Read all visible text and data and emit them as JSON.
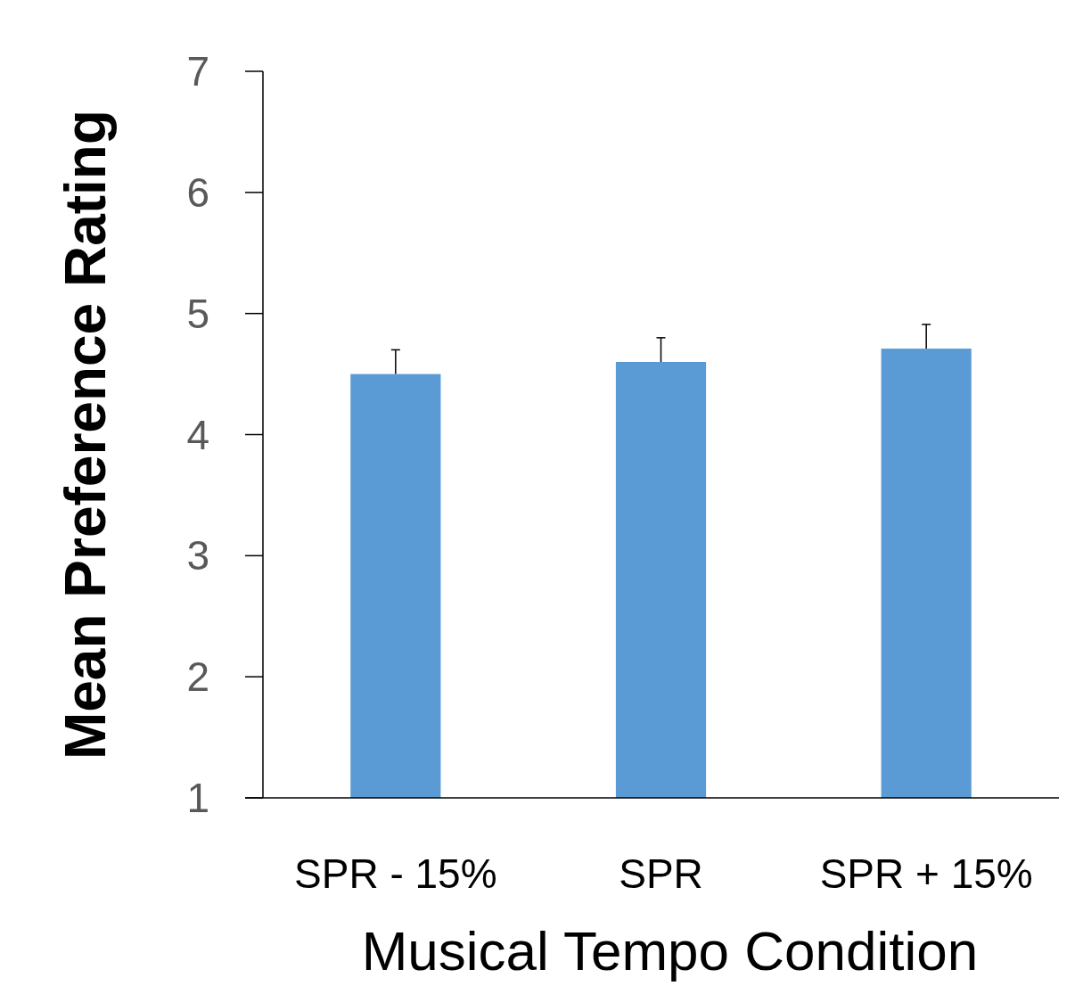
{
  "chart_data": {
    "type": "bar",
    "xlabel": "Musical Tempo Condition",
    "ylabel": "Mean Preference Rating",
    "categories": [
      "SPR - 15%",
      "SPR",
      "SPR + 15%"
    ],
    "values": [
      4.5,
      4.6,
      4.71
    ],
    "errors": [
      [
        4.5,
        4.7
      ],
      [
        4.6,
        4.8
      ],
      [
        4.71,
        4.91
      ]
    ],
    "color": "#5b9bd5",
    "ylim": [
      1,
      7
    ],
    "yticks": [
      1,
      2,
      3,
      4,
      5,
      6,
      7
    ],
    "grid": false
  }
}
